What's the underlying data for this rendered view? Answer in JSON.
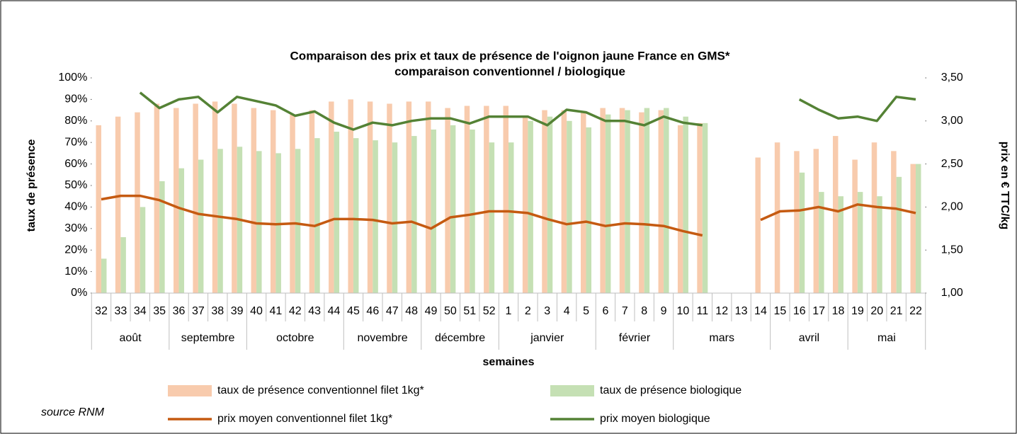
{
  "chart_data": {
    "type": "bar_line",
    "title": "Comparaison des prix et taux de présence de l'oignon  jaune France en GMS*",
    "subtitle": "comparaison conventionnel  / biologique",
    "y_label": "taux de présence",
    "y2_label": "prix en € TTC/kg",
    "x_label": "semaines",
    "annotation": "source RNM",
    "categories": [
      "32",
      "33",
      "34",
      "35",
      "36",
      "37",
      "38",
      "39",
      "40",
      "41",
      "42",
      "43",
      "44",
      "45",
      "46",
      "47",
      "48",
      "49",
      "50",
      "51",
      "52",
      "1",
      "2",
      "3",
      "4",
      "5",
      "6",
      "7",
      "8",
      "9",
      "10",
      "11",
      "12",
      "13",
      "14",
      "15",
      "16",
      "17",
      "18",
      "19",
      "20",
      "21",
      "22"
    ],
    "groups": [
      {
        "label": "août",
        "span": 4
      },
      {
        "label": "septembre",
        "span": 4
      },
      {
        "label": "octobre",
        "span": 5
      },
      {
        "label": "novembre",
        "span": 4
      },
      {
        "label": "décembre",
        "span": 4
      },
      {
        "label": "janvier",
        "span": 5
      },
      {
        "label": "février",
        "span": 4
      },
      {
        "label": "mars",
        "span": 5
      },
      {
        "label": "avril",
        "span": 4
      },
      {
        "label": "mai",
        "span": 4
      }
    ],
    "series": [
      {
        "name": "taux de présence conventionnel filet 1kg*",
        "kind": "bar",
        "color": "#f8cbad",
        "values": [
          78,
          82,
          84,
          88,
          86,
          88,
          89,
          88,
          86,
          85,
          83,
          85,
          89,
          90,
          89,
          88,
          89,
          89,
          86,
          87,
          87,
          87,
          82,
          85,
          85,
          84,
          86,
          86,
          84,
          85,
          78,
          79,
          null,
          null,
          63,
          70,
          66,
          67,
          73,
          62,
          70,
          66,
          60
        ]
      },
      {
        "name": "taux de présence biologique",
        "kind": "bar",
        "color": "#c5e0b4",
        "values": [
          16,
          26,
          40,
          52,
          58,
          62,
          67,
          68,
          66,
          65,
          67,
          72,
          75,
          72,
          71,
          70,
          73,
          76,
          78,
          76,
          70,
          70,
          80,
          82,
          80,
          77,
          83,
          85,
          86,
          86,
          82,
          79,
          null,
          null,
          null,
          null,
          56,
          47,
          45,
          47,
          45,
          54,
          60
        ]
      },
      {
        "name": "prix moyen conventionnel filet 1kg*",
        "kind": "line",
        "axis": "y2",
        "color": "#c55a11",
        "values": [
          2.09,
          2.13,
          2.13,
          2.08,
          1.99,
          1.92,
          1.89,
          1.86,
          1.81,
          1.8,
          1.81,
          1.78,
          1.86,
          1.86,
          1.85,
          1.81,
          1.83,
          1.75,
          1.88,
          1.91,
          1.95,
          1.95,
          1.93,
          1.86,
          1.8,
          1.83,
          1.78,
          1.81,
          1.8,
          1.78,
          1.72,
          1.67,
          null,
          null,
          1.85,
          1.95,
          1.96,
          2.0,
          1.95,
          2.03,
          2.0,
          1.98,
          1.93
        ]
      },
      {
        "name": "prix moyen biologique",
        "kind": "line",
        "axis": "y2",
        "color": "#548235",
        "values": [
          null,
          null,
          3.33,
          3.15,
          3.25,
          3.28,
          3.1,
          3.28,
          3.23,
          3.18,
          3.06,
          3.11,
          2.98,
          2.9,
          2.98,
          2.95,
          3.0,
          3.03,
          3.03,
          2.97,
          3.05,
          3.05,
          3.05,
          2.95,
          3.13,
          3.1,
          3.0,
          3.0,
          2.95,
          3.05,
          2.98,
          2.95,
          null,
          null,
          null,
          null,
          3.25,
          3.13,
          3.03,
          3.05,
          3.0,
          3.28,
          3.25
        ]
      }
    ],
    "ylim": [
      0,
      100
    ],
    "yticks": [
      {
        "value": 0,
        "label": "0%"
      },
      {
        "value": 10,
        "label": "10%"
      },
      {
        "value": 20,
        "label": "20%"
      },
      {
        "value": 30,
        "label": "30%"
      },
      {
        "value": 40,
        "label": "40%"
      },
      {
        "value": 50,
        "label": "50%"
      },
      {
        "value": 60,
        "label": "60%"
      },
      {
        "value": 70,
        "label": "70%"
      },
      {
        "value": 80,
        "label": "80%"
      },
      {
        "value": 90,
        "label": "90%"
      },
      {
        "value": 100,
        "label": "100%"
      }
    ],
    "y2lim": [
      1,
      3.5
    ],
    "y2ticks": [
      {
        "value": 1,
        "label": "1,00"
      },
      {
        "value": 1.5,
        "label": "1,50"
      },
      {
        "value": 2,
        "label": "2,00"
      },
      {
        "value": 2.5,
        "label": "2,50"
      },
      {
        "value": 3,
        "label": "3,00"
      },
      {
        "value": 3.5,
        "label": "3,50"
      }
    ],
    "grid": false,
    "legend": "bottom"
  }
}
